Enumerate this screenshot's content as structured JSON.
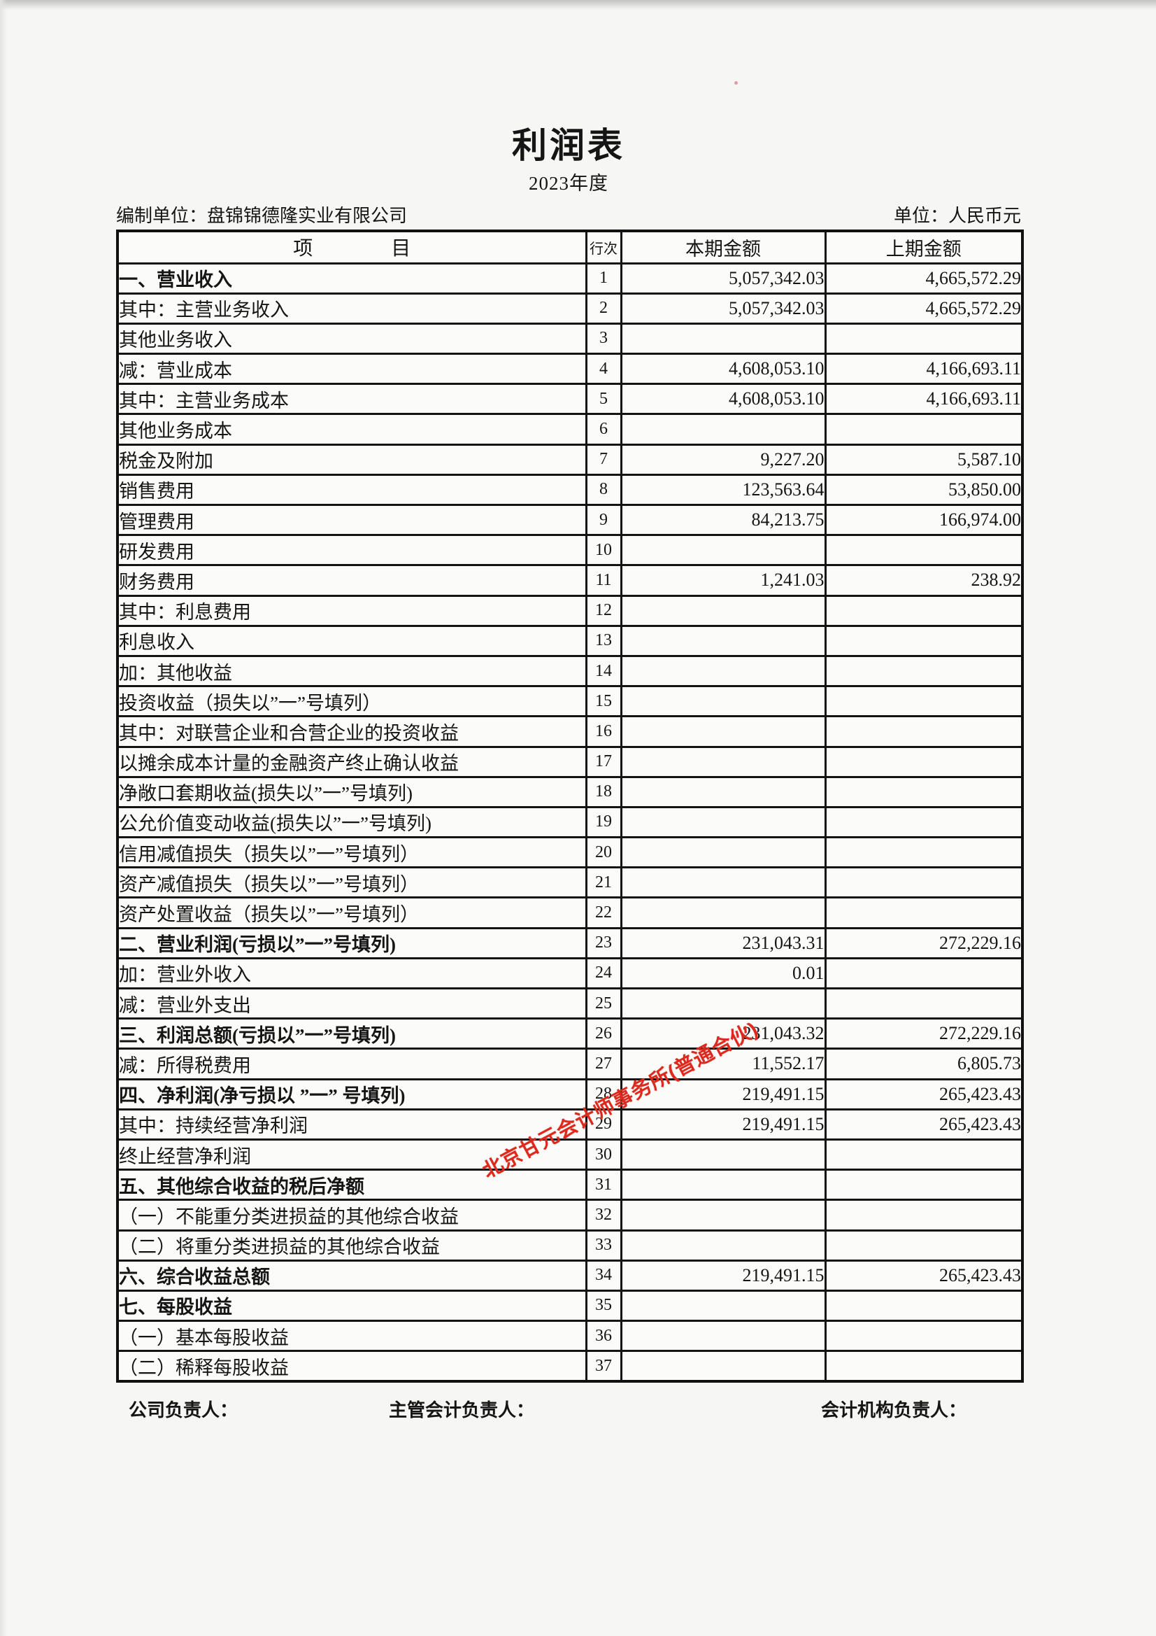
{
  "page": {
    "title": "利润表",
    "subtitle": "2023年度",
    "prepared_by": "编制单位：盘锦锦德隆实业有限公司",
    "unit": "单位：人民币元"
  },
  "table": {
    "headers": {
      "item": "项　　　　目",
      "line_no": "行次",
      "current": "本期金额",
      "prior": "上期金额"
    },
    "rows": [
      {
        "item": "一、营业收入",
        "line": "1",
        "current": "5,057,342.03",
        "prior": "4,665,572.29",
        "indent": 0,
        "bold": true
      },
      {
        "item": "其中：主营业务收入",
        "line": "2",
        "current": "5,057,342.03",
        "prior": "4,665,572.29",
        "indent": 4,
        "bold": false
      },
      {
        "item": "其他业务收入",
        "line": "3",
        "current": "",
        "prior": "",
        "indent": 5,
        "bold": false
      },
      {
        "item": "减：营业成本",
        "line": "4",
        "current": "4,608,053.10",
        "prior": "4,166,693.11",
        "indent": 1,
        "bold": false
      },
      {
        "item": "其中：主营业务成本",
        "line": "5",
        "current": "4,608,053.10",
        "prior": "4,166,693.11",
        "indent": 4,
        "bold": false
      },
      {
        "item": "其他业务成本",
        "line": "6",
        "current": "",
        "prior": "",
        "indent": 5,
        "bold": false
      },
      {
        "item": "税金及附加",
        "line": "7",
        "current": "9,227.20",
        "prior": "5,587.10",
        "indent": 3,
        "bold": false
      },
      {
        "item": "销售费用",
        "line": "8",
        "current": "123,563.64",
        "prior": "53,850.00",
        "indent": 3,
        "bold": false
      },
      {
        "item": "管理费用",
        "line": "9",
        "current": "84,213.75",
        "prior": "166,974.00",
        "indent": 3,
        "bold": false
      },
      {
        "item": "研发费用",
        "line": "10",
        "current": "",
        "prior": "",
        "indent": 3,
        "bold": false
      },
      {
        "item": "财务费用",
        "line": "11",
        "current": "1,241.03",
        "prior": "238.92",
        "indent": 3,
        "bold": false
      },
      {
        "item": "其中：利息费用",
        "line": "12",
        "current": "",
        "prior": "",
        "indent": 4,
        "bold": false
      },
      {
        "item": "利息收入",
        "line": "13",
        "current": "",
        "prior": "",
        "indent": 5,
        "bold": false
      },
      {
        "item": "加：其他收益",
        "line": "14",
        "current": "",
        "prior": "",
        "indent": 1,
        "bold": false
      },
      {
        "item": "投资收益（损失以”一”号填列）",
        "line": "15",
        "current": "",
        "prior": "",
        "indent": 3,
        "bold": false
      },
      {
        "item": "其中：对联营企业和合营企业的投资收益",
        "line": "16",
        "current": "",
        "prior": "",
        "indent": 4,
        "bold": false
      },
      {
        "item": "以摊余成本计量的金融资产终止确认收益",
        "line": "17",
        "current": "",
        "prior": "",
        "indent": 6,
        "bold": false
      },
      {
        "item": "净敞口套期收益(损失以”一”号填列)",
        "line": "18",
        "current": "",
        "prior": "",
        "indent": 3,
        "bold": false
      },
      {
        "item": "公允价值变动收益(损失以”一”号填列)",
        "line": "19",
        "current": "",
        "prior": "",
        "indent": 3,
        "bold": false
      },
      {
        "item": "信用减值损失（损失以”一”号填列）",
        "line": "20",
        "current": "",
        "prior": "",
        "indent": 3,
        "bold": false
      },
      {
        "item": "资产减值损失（损失以”一”号填列）",
        "line": "21",
        "current": "",
        "prior": "",
        "indent": 3,
        "bold": false
      },
      {
        "item": "资产处置收益（损失以”一”号填列）",
        "line": "22",
        "current": "",
        "prior": "",
        "indent": 3,
        "bold": false
      },
      {
        "item": "二、营业利润(亏损以”一”号填列)",
        "line": "23",
        "current": "231,043.31",
        "prior": "272,229.16",
        "indent": 0,
        "bold": true
      },
      {
        "item": "加：营业外收入",
        "line": "24",
        "current": "0.01",
        "prior": "",
        "indent": 1,
        "bold": false
      },
      {
        "item": "减：营业外支出",
        "line": "25",
        "current": "",
        "prior": "",
        "indent": 1,
        "bold": false
      },
      {
        "item": "三、利润总额(亏损以”一”号填列)",
        "line": "26",
        "current": "231,043.32",
        "prior": "272,229.16",
        "indent": 0,
        "bold": true
      },
      {
        "item": "减：所得税费用",
        "line": "27",
        "current": "11,552.17",
        "prior": "6,805.73",
        "indent": 1,
        "bold": false
      },
      {
        "item": "四、净利润(净亏损以 ”一” 号填列)",
        "line": "28",
        "current": "219,491.15",
        "prior": "265,423.43",
        "indent": 0,
        "bold": true
      },
      {
        "item": "其中：持续经营净利润",
        "line": "29",
        "current": "219,491.15",
        "prior": "265,423.43",
        "indent": 4,
        "bold": false
      },
      {
        "item": "终止经营净利润",
        "line": "30",
        "current": "",
        "prior": "",
        "indent": 5,
        "bold": false
      },
      {
        "item": "五、其他综合收益的税后净额",
        "line": "31",
        "current": "",
        "prior": "",
        "indent": 0,
        "bold": true
      },
      {
        "item": "（一）不能重分类进损益的其他综合收益",
        "line": "32",
        "current": "",
        "prior": "",
        "indent": 2,
        "bold": false
      },
      {
        "item": "（二）将重分类进损益的其他综合收益",
        "line": "33",
        "current": "",
        "prior": "",
        "indent": 2,
        "bold": false
      },
      {
        "item": "六、综合收益总额",
        "line": "34",
        "current": "219,491.15",
        "prior": "265,423.43",
        "indent": 0,
        "bold": true
      },
      {
        "item": "七、每股收益",
        "line": "35",
        "current": "",
        "prior": "",
        "indent": 0,
        "bold": true
      },
      {
        "item": "（一）基本每股收益",
        "line": "36",
        "current": "",
        "prior": "",
        "indent": 2,
        "bold": false
      },
      {
        "item": "（二）稀释每股收益",
        "line": "37",
        "current": "",
        "prior": "",
        "indent": 2,
        "bold": false
      }
    ]
  },
  "stamp": {
    "text": "北京甘元会计师事务所(普通合伙)",
    "color": "#de2a1e"
  },
  "footer": {
    "company": "公司负责人：",
    "chief_accountant": "主管会计负责人：",
    "accounting_dept": "会计机构负责人："
  }
}
